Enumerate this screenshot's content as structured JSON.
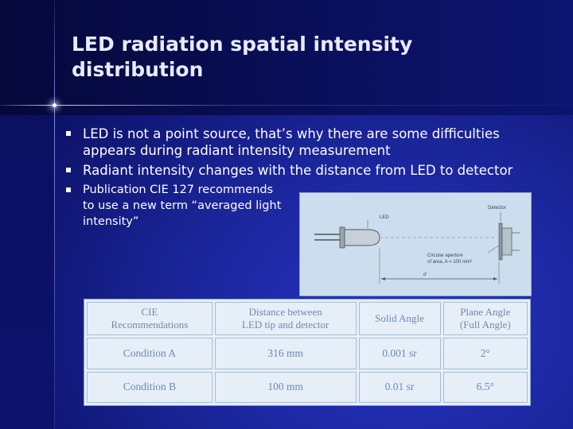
{
  "slide": {
    "title": "LED radiation spatial intensity distribution",
    "bullets": [
      "LED is not a point source, that’s why there are some difficulties appears during radiant intensity measurement",
      "Radiant intensity changes with the distance from LED to detector",
      "Publication CIE 127 recommends to use a new term “averaged light intensity”"
    ]
  },
  "figure": {
    "label_led": "LED",
    "label_detector": "Detector",
    "label_aperture_line1": "Circular aperture",
    "label_aperture_line2": "of area, A = 100 mm²",
    "label_distance": "d"
  },
  "table": {
    "headers": [
      [
        "CIE",
        "Recommendations"
      ],
      [
        "Distance between",
        "LED tip and detector"
      ],
      [
        "Solid Angle"
      ],
      [
        "Plane Angle",
        "(Full Angle)"
      ]
    ],
    "rows": [
      [
        "Condition A",
        "316 mm",
        "0.001 sr",
        "2°"
      ],
      [
        "Condition B",
        "100 mm",
        "0.01 sr",
        "6.5°"
      ]
    ]
  }
}
